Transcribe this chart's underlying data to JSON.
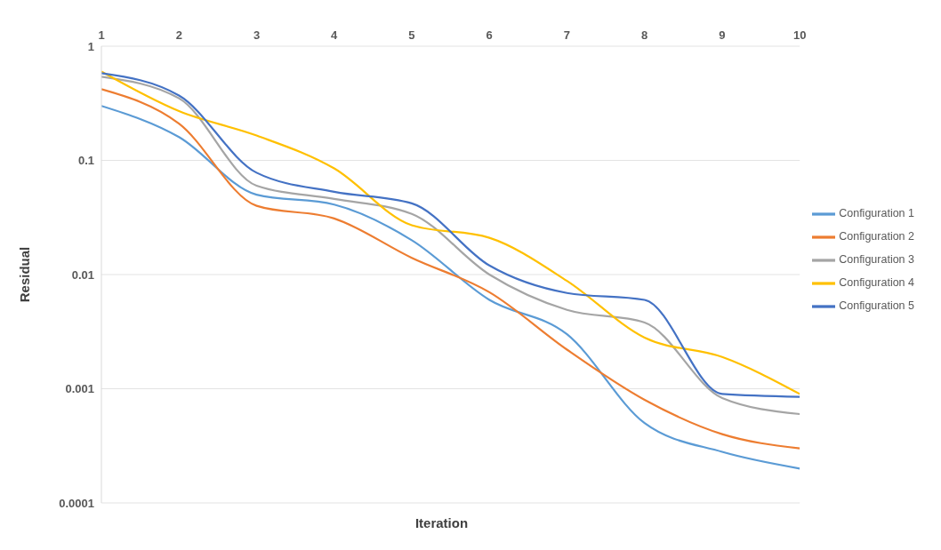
{
  "chart_data": {
    "type": "line",
    "xlabel": "Iteration",
    "ylabel": "Residual",
    "x": [
      1,
      2,
      3,
      4,
      5,
      6,
      7,
      8,
      9,
      10
    ],
    "xlim": [
      1,
      10
    ],
    "xticks": [
      1,
      2,
      3,
      4,
      5,
      6,
      7,
      8,
      9,
      10
    ],
    "ylim": [
      0.0001,
      1
    ],
    "yticks": [
      0.0001,
      0.001,
      0.01,
      0.1,
      1
    ],
    "log": true,
    "grid": "y",
    "legend": "right",
    "marker": "none",
    "series": [
      {
        "name": "Configuration 1",
        "color": "#5b9bd5",
        "values": [
          0.3,
          0.16,
          0.05,
          0.041,
          0.02,
          0.006,
          0.003,
          0.0005,
          0.00028,
          0.0002
        ]
      },
      {
        "name": "Configuration 2",
        "color": "#ed7d31",
        "values": [
          0.42,
          0.21,
          0.04,
          0.031,
          0.014,
          0.007,
          0.0022,
          0.0008,
          0.0004,
          0.0003
        ]
      },
      {
        "name": "Configuration 3",
        "color": "#a5a5a5",
        "values": [
          0.54,
          0.35,
          0.06,
          0.046,
          0.034,
          0.01,
          0.0049,
          0.0038,
          0.00083,
          0.0006
        ]
      },
      {
        "name": "Configuration 4",
        "color": "#ffc000",
        "values": [
          0.6,
          0.27,
          0.165,
          0.085,
          0.027,
          0.021,
          0.0088,
          0.0028,
          0.0019,
          0.0009
        ]
      },
      {
        "name": "Configuration 5",
        "color": "#4472c4",
        "values": [
          0.58,
          0.37,
          0.078,
          0.053,
          0.042,
          0.012,
          0.0069,
          0.006,
          0.0009,
          0.00085
        ]
      }
    ]
  }
}
